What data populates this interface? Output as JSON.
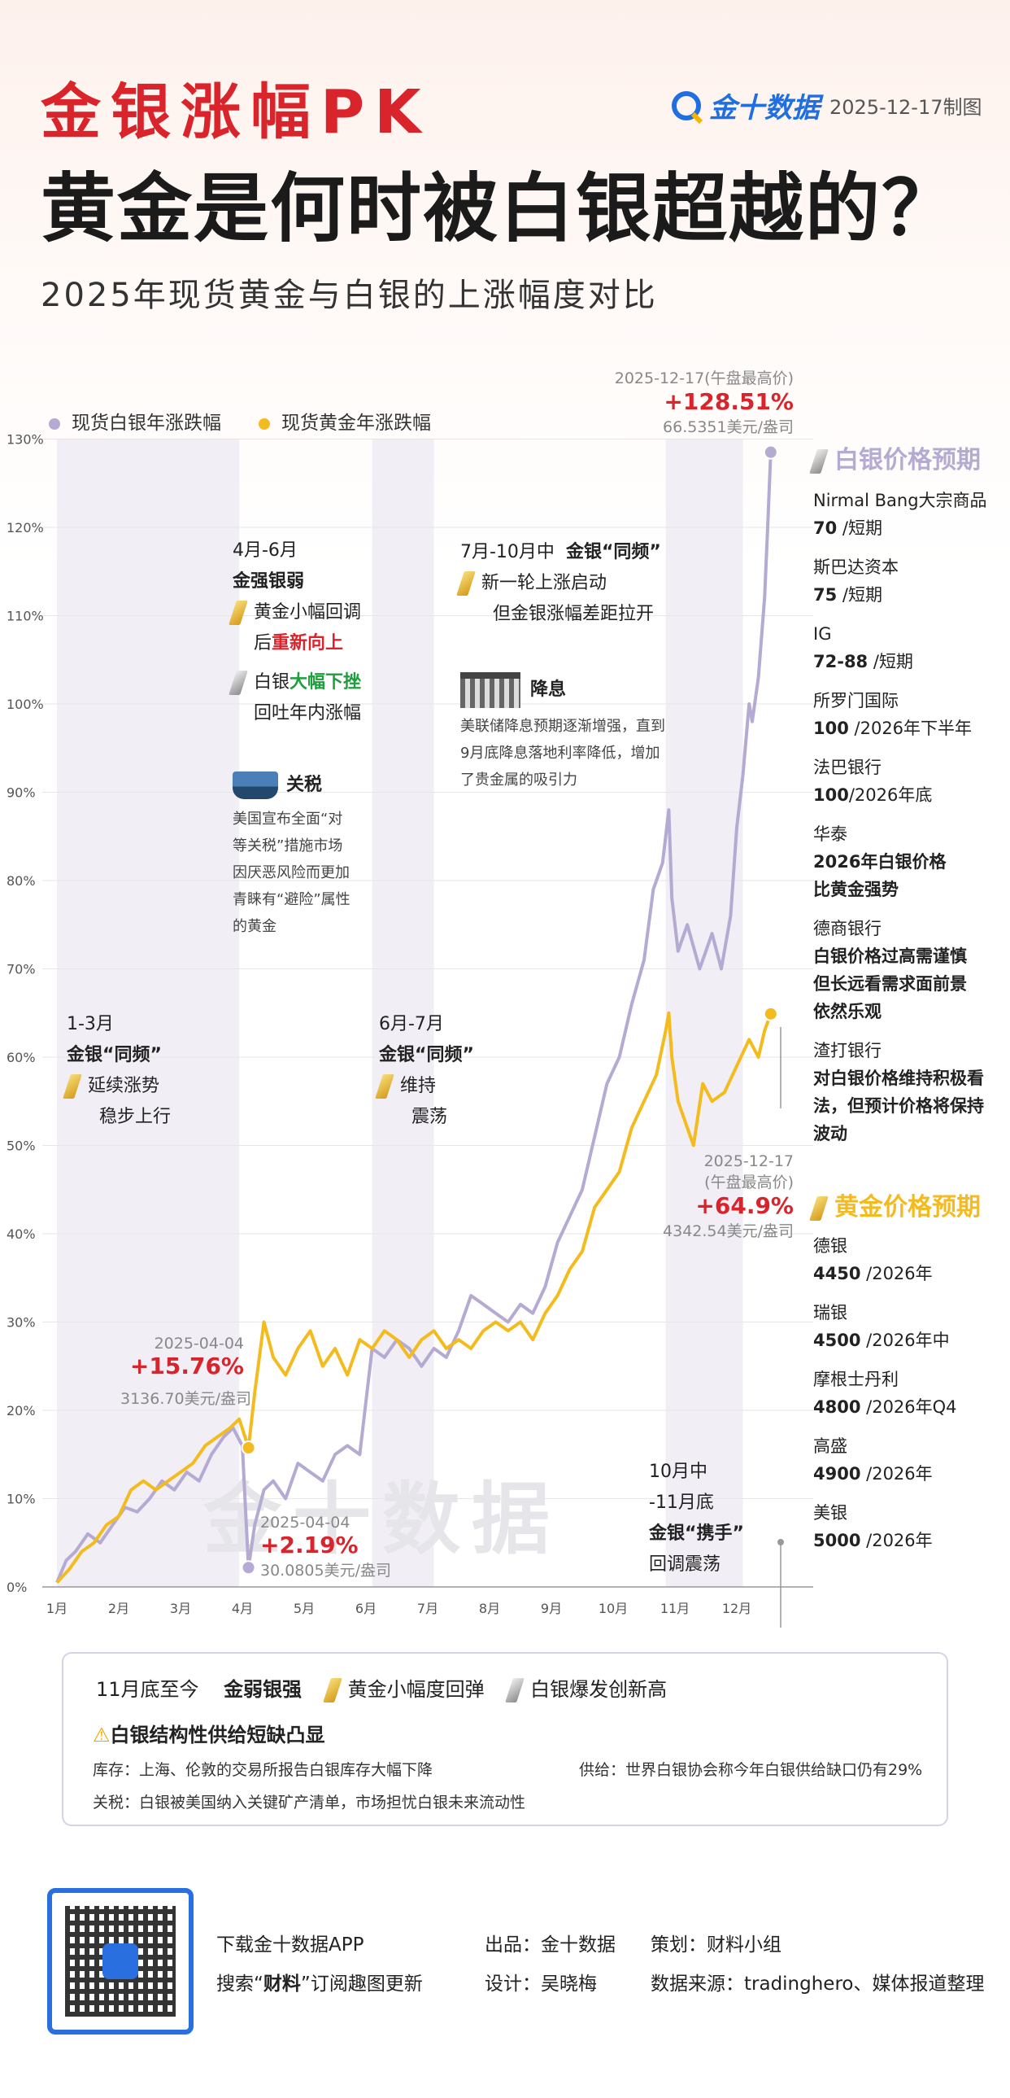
{
  "header": {
    "tag": "金银涨幅PK",
    "headline": "黄金是何时被白银超越的？",
    "subhead": "2025年现货黄金与白银的上涨幅度对比",
    "logo": "金十数据",
    "date": "2025-12-17制图"
  },
  "legend": {
    "silver": "现货白银年涨跌幅",
    "gold": "现货黄金年涨跌幅"
  },
  "colors": {
    "silver": "#b4aad2",
    "gold": "#f4bb1f",
    "band": "#f1eef6",
    "red": "#d9242c",
    "green": "#1e9e3c"
  },
  "chart_data": {
    "type": "line",
    "ylim": [
      0,
      130
    ],
    "y_ticks": [
      0,
      10,
      20,
      30,
      40,
      50,
      60,
      70,
      80,
      90,
      100,
      110,
      120,
      130
    ],
    "y_tick_labels": [
      "0%",
      "10%",
      "20%",
      "30%",
      "40%",
      "50%",
      "60%",
      "70%",
      "80%",
      "90%",
      "100%",
      "110%",
      "120%",
      "130%"
    ],
    "xlim": [
      0,
      11.55
    ],
    "x_ticks": [
      0,
      1,
      2,
      3,
      4,
      5,
      6,
      7,
      8,
      9,
      10,
      11
    ],
    "x_tick_labels": [
      "1月",
      "2月",
      "3月",
      "4月",
      "5月",
      "6月",
      "7月",
      "8月",
      "9月",
      "10月",
      "11月",
      "12月"
    ],
    "shaded_periods": [
      [
        0,
        2.95
      ],
      [
        5.1,
        6.1
      ],
      [
        9.85,
        11.1
      ]
    ],
    "series": [
      {
        "name": "现货白银年涨跌幅",
        "color": "#b4aad2",
        "points": [
          [
            0,
            0.5
          ],
          [
            0.15,
            3
          ],
          [
            0.3,
            4
          ],
          [
            0.5,
            6
          ],
          [
            0.7,
            5
          ],
          [
            0.9,
            7
          ],
          [
            1.1,
            9
          ],
          [
            1.3,
            8.5
          ],
          [
            1.5,
            10
          ],
          [
            1.7,
            12
          ],
          [
            1.9,
            11
          ],
          [
            2.1,
            13
          ],
          [
            2.3,
            12
          ],
          [
            2.5,
            15
          ],
          [
            2.7,
            17
          ],
          [
            2.85,
            18
          ],
          [
            3.0,
            16
          ],
          [
            3.05,
            9
          ],
          [
            3.1,
            2.19
          ],
          [
            3.2,
            7
          ],
          [
            3.35,
            11
          ],
          [
            3.5,
            12
          ],
          [
            3.7,
            10
          ],
          [
            3.9,
            14
          ],
          [
            4.1,
            13
          ],
          [
            4.3,
            12
          ],
          [
            4.5,
            15
          ],
          [
            4.7,
            16
          ],
          [
            4.9,
            15
          ],
          [
            5.0,
            21
          ],
          [
            5.1,
            27
          ],
          [
            5.3,
            26
          ],
          [
            5.5,
            28
          ],
          [
            5.7,
            27
          ],
          [
            5.9,
            25
          ],
          [
            6.1,
            27
          ],
          [
            6.3,
            26
          ],
          [
            6.5,
            29
          ],
          [
            6.7,
            33
          ],
          [
            6.9,
            32
          ],
          [
            7.1,
            31
          ],
          [
            7.3,
            30
          ],
          [
            7.5,
            32
          ],
          [
            7.7,
            31
          ],
          [
            7.9,
            34
          ],
          [
            8.1,
            39
          ],
          [
            8.3,
            42
          ],
          [
            8.5,
            45
          ],
          [
            8.7,
            51
          ],
          [
            8.9,
            57
          ],
          [
            9.1,
            60
          ],
          [
            9.3,
            66
          ],
          [
            9.5,
            71
          ],
          [
            9.65,
            79
          ],
          [
            9.8,
            82
          ],
          [
            9.9,
            88
          ],
          [
            9.95,
            78
          ],
          [
            10.05,
            72
          ],
          [
            10.2,
            75
          ],
          [
            10.4,
            70
          ],
          [
            10.6,
            74
          ],
          [
            10.75,
            70
          ],
          [
            10.9,
            76
          ],
          [
            11.0,
            86
          ],
          [
            11.1,
            92
          ],
          [
            11.2,
            100
          ],
          [
            11.25,
            98
          ],
          [
            11.35,
            103
          ],
          [
            11.45,
            112
          ],
          [
            11.5,
            120
          ],
          [
            11.55,
            128.51
          ]
        ]
      },
      {
        "name": "现货黄金年涨跌幅",
        "color": "#f4bb1f",
        "points": [
          [
            0,
            0.5
          ],
          [
            0.2,
            2
          ],
          [
            0.4,
            4
          ],
          [
            0.6,
            5
          ],
          [
            0.8,
            7
          ],
          [
            1.0,
            8
          ],
          [
            1.2,
            11
          ],
          [
            1.4,
            12
          ],
          [
            1.6,
            11
          ],
          [
            1.8,
            12
          ],
          [
            2.0,
            13
          ],
          [
            2.2,
            14
          ],
          [
            2.4,
            16
          ],
          [
            2.6,
            17
          ],
          [
            2.8,
            18
          ],
          [
            2.95,
            19
          ],
          [
            3.1,
            15.76
          ],
          [
            3.2,
            22
          ],
          [
            3.35,
            30
          ],
          [
            3.5,
            26
          ],
          [
            3.7,
            24
          ],
          [
            3.9,
            27
          ],
          [
            4.1,
            29
          ],
          [
            4.3,
            25
          ],
          [
            4.5,
            27
          ],
          [
            4.7,
            24
          ],
          [
            4.9,
            28
          ],
          [
            5.1,
            27
          ],
          [
            5.3,
            29
          ],
          [
            5.5,
            28
          ],
          [
            5.7,
            26
          ],
          [
            5.9,
            28
          ],
          [
            6.1,
            29
          ],
          [
            6.3,
            27
          ],
          [
            6.5,
            28
          ],
          [
            6.7,
            27
          ],
          [
            6.9,
            29
          ],
          [
            7.1,
            30
          ],
          [
            7.3,
            29
          ],
          [
            7.5,
            30
          ],
          [
            7.7,
            28
          ],
          [
            7.9,
            31
          ],
          [
            8.1,
            33
          ],
          [
            8.3,
            36
          ],
          [
            8.5,
            38
          ],
          [
            8.7,
            43
          ],
          [
            8.9,
            45
          ],
          [
            9.1,
            47
          ],
          [
            9.3,
            52
          ],
          [
            9.5,
            55
          ],
          [
            9.7,
            58
          ],
          [
            9.85,
            63
          ],
          [
            9.9,
            65
          ],
          [
            9.95,
            60
          ],
          [
            10.05,
            55
          ],
          [
            10.2,
            52
          ],
          [
            10.3,
            50
          ],
          [
            10.45,
            57
          ],
          [
            10.6,
            55
          ],
          [
            10.8,
            56
          ],
          [
            11.0,
            59
          ],
          [
            11.2,
            62
          ],
          [
            11.35,
            60
          ],
          [
            11.45,
            63
          ],
          [
            11.55,
            64.9
          ]
        ]
      }
    ],
    "markers": [
      {
        "series": "现货白银年涨跌幅",
        "x": 11.55,
        "y": 128.51
      },
      {
        "series": "现货黄金年涨跌幅",
        "x": 11.55,
        "y": 64.9
      },
      {
        "series": "现货黄金年涨跌幅",
        "x": 3.1,
        "y": 15.76
      },
      {
        "series": "现货白银年涨跌幅",
        "x": 3.1,
        "y": 2.19
      }
    ]
  },
  "callouts": {
    "silver_high": {
      "date": "2025-12-17(午盘最高价)",
      "pct": "+128.51%",
      "price": "66.5351美元/盎司"
    },
    "gold_high": {
      "date": "2025-12-17",
      "note": "(午盘最高价)",
      "pct": "+64.9%",
      "price": "4342.54美元/盎司"
    },
    "gold_apr": {
      "date": "2025-04-04",
      "pct": "+15.76%",
      "price": "3136.70美元/盎司"
    },
    "silver_apr": {
      "date": "2025-04-04",
      "pct": "+2.19%",
      "price": "30.0805美元/盎司"
    }
  },
  "annotations": {
    "q1": {
      "period": "1-3月",
      "title": "金银“同频”",
      "l1": "延续涨势",
      "l2": "稳步上行"
    },
    "apr_jun": {
      "period": "4月-6月",
      "title": "金强银弱",
      "g1": "黄金小幅回调",
      "g2a": "后",
      "g2b": "重新向上",
      "s1a": "白银",
      "s1b": "大幅下挫",
      "s2": "回吐年内涨幅"
    },
    "tariff": {
      "title": "关税",
      "lines": [
        "美国宣布全面“对",
        "等关税”措施市场",
        "因厌恶风险而更加",
        "青睐有“避险”属性",
        "的黄金"
      ]
    },
    "jun_jul": {
      "period": "6月-7月",
      "title": "金银“同频”",
      "l1": "维持",
      "l2": "震荡"
    },
    "jul_oct": {
      "period": "7月-10月中",
      "title": "金银“同频”",
      "l1": "新一轮上涨启动",
      "l2": "但金银涨幅差距拉开"
    },
    "rate": {
      "title": "降息",
      "lines": [
        "美联储降息预期逐渐增强，直到",
        "9月底降息落地利率降低，增加",
        "了贵金属的吸引力"
      ]
    },
    "oct_nov": {
      "l1": "10月中",
      "l2": "-11月底",
      "title": "金银“携手”",
      "l3": "回调震荡"
    }
  },
  "silver_forecast": {
    "title": "白银价格预期",
    "items": [
      {
        "inst": "Nirmal Bang大宗商品",
        "val": "70",
        "term": " /短期"
      },
      {
        "inst": "斯巴达资本",
        "val": "75",
        "term": " /短期"
      },
      {
        "inst": "IG",
        "val": "72-88",
        "term": " /短期"
      },
      {
        "inst": "所罗门国际",
        "val": "100",
        "term": " /2026年下半年"
      },
      {
        "inst": "法巴银行",
        "val": "100",
        "term": "/2026年底"
      }
    ],
    "huatai": {
      "inst": "华泰",
      "l1": "2026年白银价格",
      "l2": "比黄金强势"
    },
    "db": {
      "inst": "德商银行",
      "l1": "白银价格过高需谨慎",
      "l2": "但长远看需求面前景",
      "l3": "依然乐观"
    },
    "sc": {
      "inst": "渣打银行",
      "l1": "对白银价格维持积极看",
      "l2": "法，但预计价格将保持",
      "l3": "波动"
    }
  },
  "gold_forecast": {
    "title": "黄金价格预期",
    "items": [
      {
        "inst": "德银",
        "val": "4450",
        "term": " /2026年"
      },
      {
        "inst": "瑞银",
        "val": "4500",
        "term": " /2026年中"
      },
      {
        "inst": "摩根士丹利",
        "val": "4800",
        "term": " /2026年Q4"
      },
      {
        "inst": "高盛",
        "val": "4900",
        "term": " /2026年"
      },
      {
        "inst": "美银",
        "val": "5000",
        "term": " /2026年"
      }
    ]
  },
  "bottom_box": {
    "period": "11月底至今",
    "title": "金弱银强",
    "gold": "黄金小幅度回弹",
    "silver": "白银爆发创新高",
    "warn_title": "白银结构性供给短缺凸显",
    "line1": "库存：上海、伦敦的交易所报告白银库存大幅下降",
    "line2": "供给：世界白银协会称今年白银供给缺口仍有29%",
    "line3": "关税：白银被美国纳入关键矿产清单，市场担忧白银未来流动性"
  },
  "watermark": "金十数据",
  "footer": {
    "app1": "下载金十数据APP",
    "app2a": "搜索“",
    "app2b": "财料",
    "app2c": "”订阅趣图更新",
    "producer": "出品：金十数据",
    "planner": "策划：财料小组",
    "designer": "设计：吴晓梅",
    "source": "数据来源：tradinghero、媒体报道整理"
  }
}
